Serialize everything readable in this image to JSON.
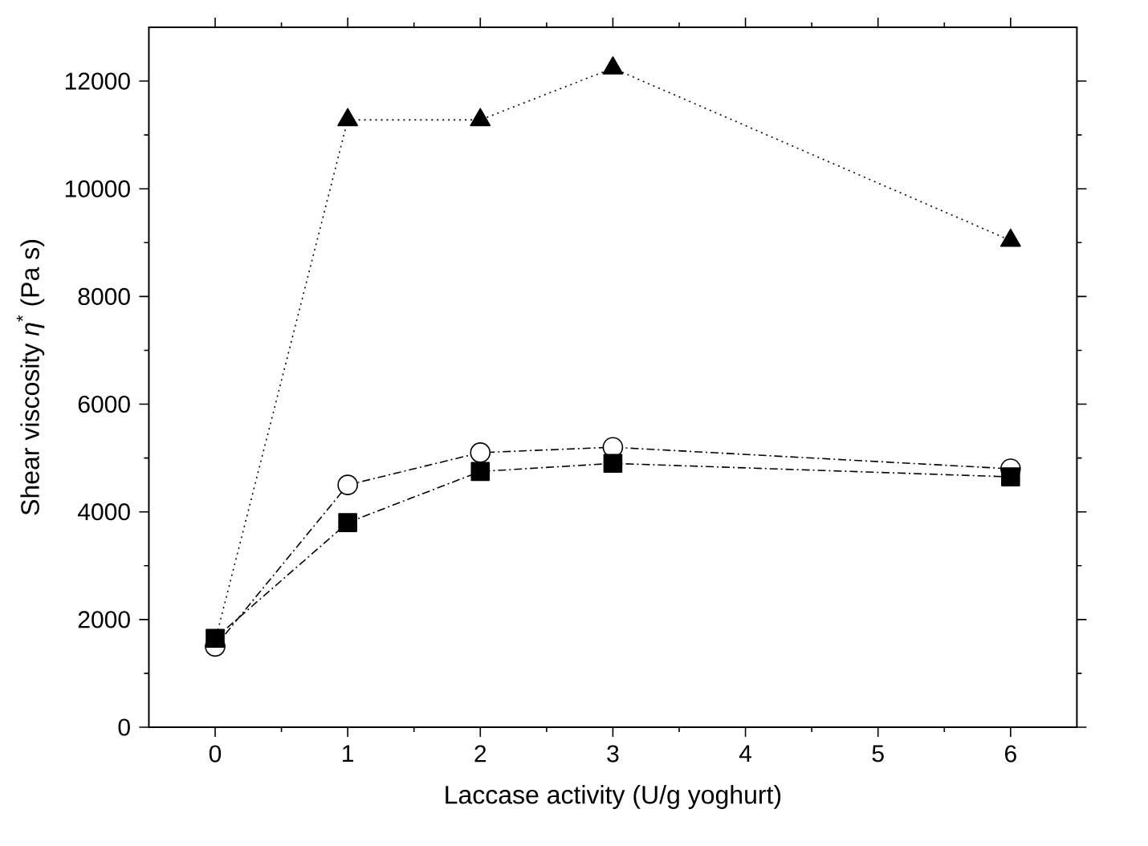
{
  "chart_data": {
    "type": "line",
    "xlabel": "Laccase activity (U/g yoghurt)",
    "ylabel": "Shear viscosity *η*$^{*}$ (Pa s)",
    "x": [
      0,
      1,
      2,
      3,
      6
    ],
    "series": [
      {
        "color": "#000000",
        "marker": "triangle",
        "line_style": "dotted",
        "values": [
          1600,
          11280,
          11280,
          12240,
          9040
        ]
      },
      {
        "color": "#000000",
        "marker": "circle",
        "line_style": "dashed",
        "values": [
          1500,
          4500,
          5100,
          5200,
          4800
        ]
      },
      {
        "color": "#000000",
        "marker": "square",
        "line_style": "dashed",
        "values": [
          1650,
          3800,
          4750,
          4900,
          4650
        ]
      }
    ],
    "xlim": [
      -0.5,
      6.5
    ],
    "ylim": [
      0,
      13000
    ],
    "xticks": [
      0,
      1,
      2,
      3,
      4,
      5,
      6
    ],
    "yticks": [
      0,
      2000,
      4000,
      6000,
      8000,
      10000,
      12000
    ],
    "grid": false
  }
}
